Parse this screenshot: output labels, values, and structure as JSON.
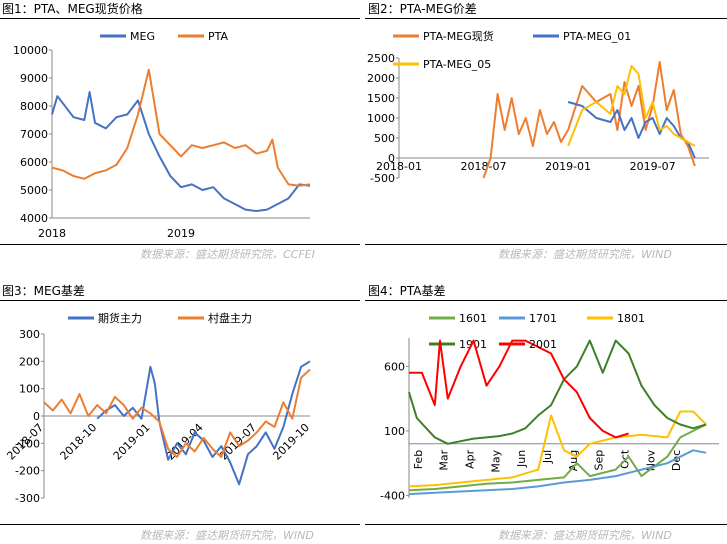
{
  "panels": [
    {
      "title": "图1：PTA、MEG现货价格",
      "source": "数据来源：盛达期货研究院，CCFEI"
    },
    {
      "title": "图2：PTA-MEG价差",
      "source": "数据来源：盛达期货研究院，WIND"
    },
    {
      "title": "图3：MEG基差",
      "source": "数据来源：盛达期货研究院，WIND"
    },
    {
      "title": "图4：PTA基差",
      "source": "数据来源：盛达期货研究院，WIND"
    }
  ],
  "colors": {
    "blue": "#4472c4",
    "orange": "#ed7d31",
    "yellow": "#ffc000",
    "green": "#70ad47",
    "lightblue": "#5b9bd5",
    "darkgreen": "#3f7f27",
    "red": "#ff0000",
    "source_gray": "#b8b8b8"
  },
  "chart_data": [
    {
      "type": "line",
      "yticks": [
        "4000",
        "5000",
        "6000",
        "7000",
        "8000",
        "9000",
        "10000"
      ],
      "ylim": [
        4000,
        10000
      ],
      "xlim": [
        0,
        24
      ],
      "xticks": [
        {
          "x": 0,
          "label": "2018"
        },
        {
          "x": 12,
          "label": "2019"
        }
      ],
      "grid": false,
      "legend": "top",
      "series": [
        {
          "name": "MEG",
          "color": "blue",
          "x": [
            0,
            0.5,
            1,
            2,
            3,
            3.5,
            4,
            5,
            6,
            7,
            8,
            9,
            10,
            11,
            12,
            13,
            14,
            15,
            16,
            17,
            18,
            19,
            20,
            21,
            22,
            23,
            24
          ],
          "values": [
            7700,
            8350,
            8100,
            7600,
            7500,
            8500,
            7400,
            7200,
            7600,
            7700,
            8200,
            7000,
            6200,
            5500,
            5100,
            5200,
            5000,
            5100,
            4700,
            4500,
            4300,
            4250,
            4300,
            4500,
            4700,
            5200,
            5150
          ]
        },
        {
          "name": "PTA",
          "color": "orange",
          "x": [
            0,
            1,
            2,
            3,
            4,
            5,
            6,
            7,
            8,
            9,
            10,
            11,
            12,
            13,
            14,
            15,
            16,
            17,
            18,
            19,
            20,
            20.5,
            21,
            22,
            23,
            24
          ],
          "values": [
            5800,
            5700,
            5500,
            5400,
            5600,
            5700,
            5900,
            6500,
            7700,
            9300,
            7000,
            6600,
            6200,
            6600,
            6500,
            6600,
            6700,
            6500,
            6600,
            6300,
            6400,
            6800,
            5800,
            5200,
            5150,
            5200
          ]
        }
      ]
    },
    {
      "type": "line",
      "yticks": [
        "-500",
        "0",
        "500",
        "1000",
        "1500",
        "2000",
        "2500"
      ],
      "ylim": [
        -500,
        2500
      ],
      "xlim": [
        0,
        22
      ],
      "xticks": [
        {
          "x": 0,
          "label": "2018-01"
        },
        {
          "x": 6,
          "label": "2018-07"
        },
        {
          "x": 12,
          "label": "2019-01"
        },
        {
          "x": 18,
          "label": "2019-07"
        }
      ],
      "grid": false,
      "legend": "top",
      "series": [
        {
          "name": "PTA-MEG现货",
          "color": "orange",
          "x": [
            6,
            6.5,
            7,
            7.5,
            8,
            8.5,
            9,
            9.5,
            10,
            10.5,
            11,
            11.5,
            12,
            13,
            14,
            15,
            15.5,
            16,
            16.5,
            17,
            17.5,
            18,
            18.5,
            19,
            19.5,
            20,
            20.5,
            21
          ],
          "values": [
            -500,
            0,
            1600,
            700,
            1500,
            600,
            1000,
            300,
            1200,
            600,
            900,
            400,
            700,
            1800,
            1400,
            1600,
            700,
            1900,
            1300,
            1800,
            700,
            1300,
            2400,
            1200,
            1700,
            600,
            300,
            -200
          ]
        },
        {
          "name": "PTA-MEG_01",
          "color": "blue",
          "x": [
            12,
            13,
            14,
            15,
            15.5,
            16,
            16.5,
            17,
            17.5,
            18,
            18.5,
            19,
            19.5,
            20,
            20.5,
            21
          ],
          "values": [
            1400,
            1300,
            1000,
            900,
            1200,
            700,
            1000,
            500,
            900,
            1000,
            600,
            1000,
            800,
            500,
            400,
            0
          ]
        },
        {
          "name": "PTA-MEG_05",
          "color": "yellow",
          "x": [
            12,
            13,
            14,
            15,
            15.5,
            16,
            16.5,
            17,
            17.5,
            18,
            18.5,
            19,
            19.5,
            20,
            20.5,
            21
          ],
          "values": [
            300,
            1200,
            1400,
            1100,
            1800,
            1600,
            2300,
            2100,
            1000,
            1400,
            700,
            800,
            600,
            500,
            400,
            300
          ]
        }
      ]
    },
    {
      "type": "line",
      "yticks": [
        "-300",
        "-200",
        "-100",
        "0",
        "100",
        "200",
        "300"
      ],
      "ylim": [
        -300,
        300
      ],
      "xlim": [
        0,
        30
      ],
      "xticks": [
        {
          "x": 0,
          "label": "2018-07"
        },
        {
          "x": 6,
          "label": "2018-10"
        },
        {
          "x": 12,
          "label": "2019-01"
        },
        {
          "x": 18,
          "label": "2019-04"
        },
        {
          "x": 24,
          "label": "2019-07"
        },
        {
          "x": 30,
          "label": "2019-10"
        }
      ],
      "grid": false,
      "legend": "top",
      "series": [
        {
          "name": "期货主力",
          "color": "blue",
          "x": [
            6,
            7,
            8,
            9,
            10,
            11,
            12,
            12.5,
            13,
            14,
            15,
            16,
            17,
            18,
            19,
            20,
            21,
            22,
            23,
            24,
            25,
            26,
            27,
            28,
            29,
            30
          ],
          "values": [
            -10,
            20,
            40,
            0,
            30,
            -10,
            180,
            120,
            -20,
            -160,
            -100,
            -140,
            -60,
            -90,
            -150,
            -110,
            -170,
            -250,
            -140,
            -110,
            -60,
            -120,
            -40,
            80,
            180,
            200
          ]
        },
        {
          "name": "村盘主力",
          "color": "orange",
          "x": [
            0,
            1,
            2,
            3,
            4,
            5,
            6,
            7,
            8,
            9,
            10,
            11,
            12,
            13,
            14,
            15,
            16,
            17,
            18,
            19,
            20,
            21,
            22,
            23,
            24,
            25,
            26,
            27,
            28,
            29,
            30
          ],
          "values": [
            50,
            20,
            60,
            10,
            80,
            0,
            40,
            10,
            70,
            40,
            -10,
            30,
            10,
            -20,
            -120,
            -150,
            -100,
            -130,
            -80,
            -120,
            -150,
            -60,
            -110,
            -90,
            -60,
            -20,
            -40,
            50,
            -10,
            140,
            170
          ]
        }
      ]
    },
    {
      "type": "line",
      "yticks": [
        "-400",
        "100",
        "600"
      ],
      "ylim": [
        -420,
        820
      ],
      "xlim": [
        0,
        12
      ],
      "xticks": [
        {
          "x": 0.5,
          "label": "Feb"
        },
        {
          "x": 1.5,
          "label": "Mar"
        },
        {
          "x": 2.5,
          "label": "Apr"
        },
        {
          "x": 3.5,
          "label": "May"
        },
        {
          "x": 4.5,
          "label": "Jun"
        },
        {
          "x": 5.5,
          "label": "Jul"
        },
        {
          "x": 6.5,
          "label": "Aug"
        },
        {
          "x": 7.5,
          "label": "Sep"
        },
        {
          "x": 8.5,
          "label": "Oct"
        },
        {
          "x": 9.5,
          "label": "Nov"
        },
        {
          "x": 10.5,
          "label": "Dec"
        }
      ],
      "grid": false,
      "legend": "top",
      "series": [
        {
          "name": "1601",
          "color": "green",
          "x": [
            0,
            1,
            2,
            3,
            4,
            5,
            6,
            6.5,
            7,
            8,
            8.5,
            9,
            10,
            10.5,
            11,
            11.5
          ],
          "values": [
            -360,
            -350,
            -330,
            -310,
            -300,
            -280,
            -260,
            -150,
            -250,
            -200,
            -100,
            -250,
            -100,
            50,
            100,
            150
          ]
        },
        {
          "name": "1701",
          "color": "lightblue",
          "x": [
            0,
            1,
            2,
            3,
            4,
            5,
            6,
            7,
            8,
            9,
            10,
            10.5,
            11,
            11.5
          ],
          "values": [
            -390,
            -380,
            -370,
            -360,
            -350,
            -330,
            -300,
            -280,
            -250,
            -200,
            -150,
            -100,
            -50,
            -70
          ]
        },
        {
          "name": "1801",
          "color": "yellow",
          "x": [
            0,
            1,
            2,
            3,
            4,
            5,
            5.5,
            6,
            6.5,
            7,
            8,
            9,
            10,
            10.5,
            11,
            11.5
          ],
          "values": [
            -330,
            -320,
            -300,
            -280,
            -260,
            -200,
            220,
            -50,
            -100,
            0,
            50,
            70,
            50,
            250,
            250,
            150
          ]
        },
        {
          "name": "1901",
          "color": "darkgreen",
          "x": [
            0,
            0.3,
            1,
            1.5,
            2,
            2.5,
            3,
            3.5,
            4,
            4.5,
            5,
            5.5,
            6,
            6.5,
            7,
            7.5,
            8,
            8.5,
            9,
            9.5,
            10,
            10.5,
            11,
            11.5
          ],
          "values": [
            400,
            200,
            50,
            0,
            20,
            40,
            50,
            60,
            80,
            120,
            220,
            300,
            500,
            600,
            800,
            550,
            800,
            700,
            450,
            300,
            200,
            150,
            120,
            150
          ]
        },
        {
          "name": "2001",
          "color": "red",
          "x": [
            0,
            0.5,
            1,
            1.2,
            1.5,
            2,
            2.5,
            3,
            3.5,
            4,
            4.5,
            5,
            5.5,
            6,
            6.5,
            7,
            7.5,
            8,
            8.5
          ],
          "values": [
            550,
            550,
            300,
            800,
            350,
            600,
            800,
            450,
            600,
            800,
            800,
            750,
            700,
            500,
            400,
            200,
            100,
            50,
            80
          ]
        }
      ]
    }
  ]
}
